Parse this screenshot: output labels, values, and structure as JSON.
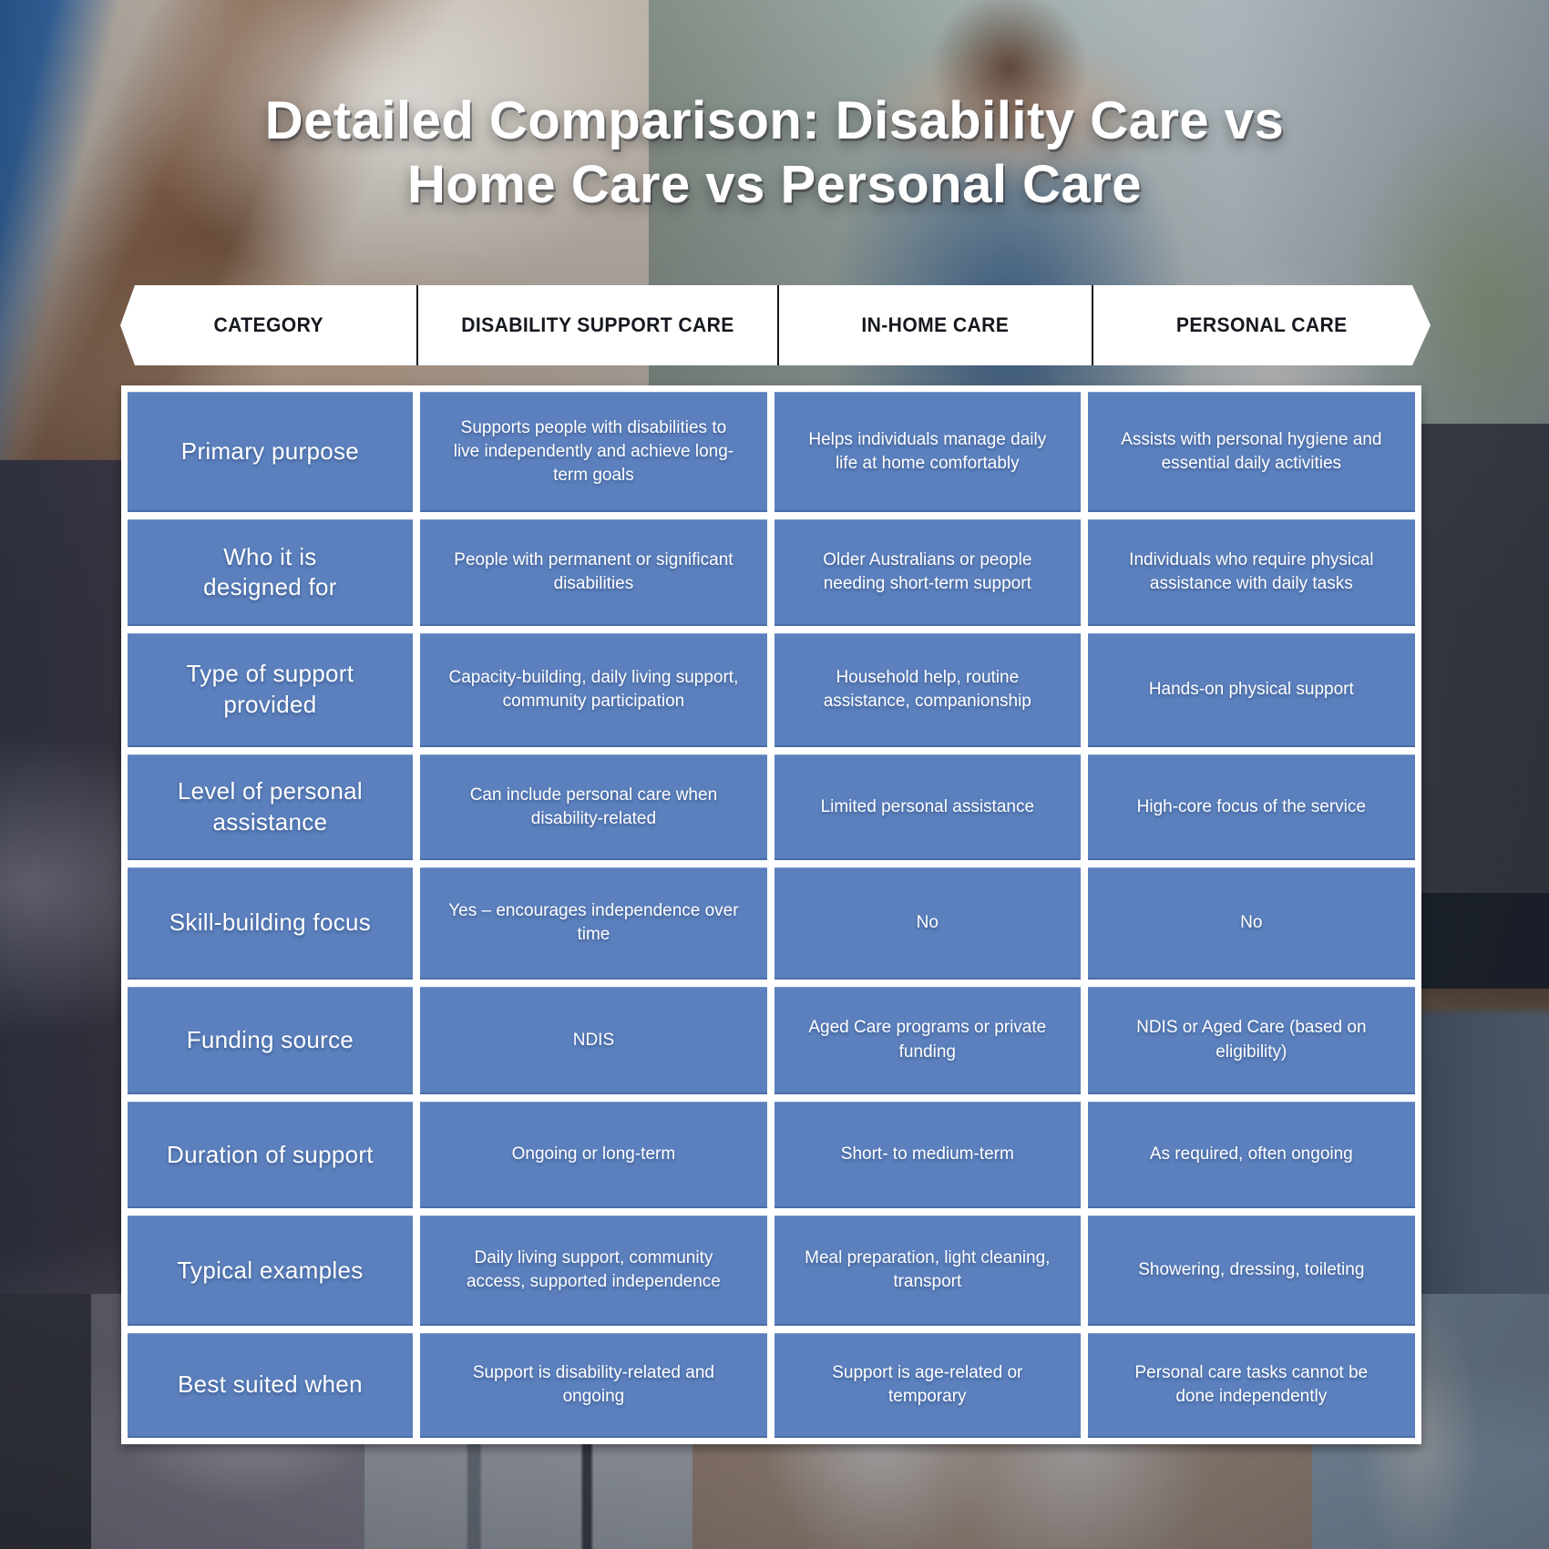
{
  "title": {
    "line1": "Detailed Comparison: Disability Care vs",
    "line2": "Home Care vs Personal Care"
  },
  "table": {
    "headers": [
      "CATEGORY",
      "DISABILITY SUPPORT CARE",
      "IN-HOME CARE",
      "PERSONAL CARE"
    ],
    "rows": [
      {
        "category": "Primary purpose",
        "cells": [
          "Supports people with disabilities to live independently and achieve long-term goals",
          "Helps individuals manage daily life at home comfortably",
          "Assists with personal hygiene and essential daily activities"
        ]
      },
      {
        "category": "Who it is designed for",
        "cells": [
          "People with permanent or significant disabilities",
          "Older Australians or people needing short-term support",
          "Individuals who require physical assistance with daily tasks"
        ]
      },
      {
        "category": "Type of support provided",
        "cells": [
          "Capacity-building, daily living support, community participation",
          "Household help, routine assistance, companionship",
          "Hands-on physical support"
        ]
      },
      {
        "category": "Level of personal assistance",
        "cells": [
          "Can include personal care when disability-related",
          "Limited personal assistance",
          "High-core focus of the service"
        ]
      },
      {
        "category": "Skill-building focus",
        "cells": [
          "Yes – encourages independence over time",
          "No",
          "No"
        ]
      },
      {
        "category": "Funding source",
        "cells": [
          "NDIS",
          "Aged Care programs or private funding",
          "NDIS or Aged Care (based on eligibility)"
        ]
      },
      {
        "category": "Duration of support",
        "cells": [
          "Ongoing or long-term",
          "Short- to medium-term",
          "As required, often ongoing"
        ]
      },
      {
        "category": "Typical examples",
        "cells": [
          "Daily living support, community access, supported independence",
          "Meal preparation, light cleaning, transport",
          "Showering, dressing, toileting"
        ]
      },
      {
        "category": "Best suited when",
        "cells": [
          "Support is disability-related and ongoing",
          "Support is age-related or temporary",
          "Personal care tasks cannot be done independently"
        ]
      }
    ]
  },
  "colors": {
    "cell_blue": "#5b80bd",
    "cell_text": "#ffffff",
    "banner_bg": "#ffffff",
    "banner_text": "#15181f",
    "title_text": "#ffffff"
  }
}
